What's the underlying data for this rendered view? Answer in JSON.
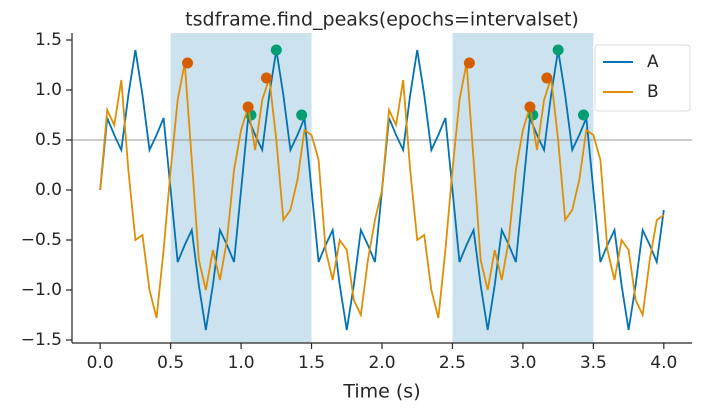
{
  "chart_data": {
    "type": "line",
    "title": "tsdframe.find_peaks(epochs=intervalset)",
    "xlabel": "Time (s)",
    "x": [
      0,
      0.05,
      0.1,
      0.15,
      0.2,
      0.25,
      0.3,
      0.35,
      0.4,
      0.45,
      0.5,
      0.55,
      0.6,
      0.65,
      0.7,
      0.75,
      0.8,
      0.85,
      0.9,
      0.95,
      1,
      1.05,
      1.1,
      1.15,
      1.2,
      1.25,
      1.3,
      1.35,
      1.4,
      1.45,
      1.5,
      1.55,
      1.6,
      1.65,
      1.7,
      1.75,
      1.8,
      1.85,
      1.9,
      1.95,
      2,
      2.05,
      2.1,
      2.15,
      2.2,
      2.25,
      2.3,
      2.35,
      2.4,
      2.45,
      2.5,
      2.55,
      2.6,
      2.65,
      2.7,
      2.75,
      2.8,
      2.85,
      2.9,
      2.95,
      3,
      3.05,
      3.1,
      3.15,
      3.2,
      3.25,
      3.3,
      3.35,
      3.4,
      3.45,
      3.5,
      3.55,
      3.6,
      3.65,
      3.7,
      3.75,
      3.8,
      3.85,
      3.9,
      3.95,
      4
    ],
    "series": [
      {
        "name": "A",
        "color": "#0173b2",
        "values": [
          0,
          0.72,
          0.55,
          0.4,
          0.95,
          1.4,
          0.95,
          0.4,
          0.55,
          0.72,
          0,
          -0.72,
          -0.55,
          -0.4,
          -0.95,
          -1.4,
          -0.95,
          -0.4,
          -0.55,
          -0.72,
          0,
          0.72,
          0.55,
          0.4,
          0.95,
          1.4,
          0.95,
          0.4,
          0.55,
          0.72,
          0,
          -0.72,
          -0.55,
          -0.4,
          -0.95,
          -1.4,
          -0.95,
          -0.4,
          -0.55,
          -0.72,
          0,
          0.72,
          0.55,
          0.4,
          0.95,
          1.4,
          0.95,
          0.4,
          0.55,
          0.72,
          0,
          -0.72,
          -0.55,
          -0.4,
          -0.95,
          -1.4,
          -0.95,
          -0.4,
          -0.55,
          -0.72,
          0,
          0.72,
          0.55,
          0.4,
          0.95,
          1.4,
          0.95,
          0.4,
          0.55,
          0.72,
          0,
          -0.72,
          -0.55,
          -0.4,
          -0.95,
          -1.4,
          -0.95,
          -0.4,
          -0.55,
          -0.72,
          -0.2
        ],
        "peaks": {
          "color": "#029e73",
          "x": [
            1.07,
            1.25,
            1.43,
            3.07,
            3.25,
            3.43
          ],
          "y": [
            0.75,
            1.4,
            0.75,
            0.75,
            1.4,
            0.75
          ]
        }
      },
      {
        "name": "B",
        "color": "#de8f05",
        "values": [
          0,
          0.8,
          0.65,
          1.1,
          0.2,
          -0.5,
          -0.45,
          -1.0,
          -1.28,
          -0.6,
          0.2,
          0.9,
          1.27,
          0.3,
          -0.7,
          -1.0,
          -0.6,
          -0.9,
          -0.5,
          0.2,
          0.6,
          0.83,
          0.4,
          0.9,
          1.12,
          0.5,
          -0.3,
          -0.2,
          0.1,
          0.6,
          0.55,
          0.3,
          -0.6,
          -0.9,
          -0.5,
          -0.6,
          -1.1,
          -1.25,
          -0.7,
          -0.3,
          0,
          0.8,
          0.65,
          1.1,
          0.2,
          -0.5,
          -0.45,
          -1.0,
          -1.28,
          -0.6,
          0.2,
          0.9,
          1.27,
          0.3,
          -0.7,
          -1.0,
          -0.6,
          -0.9,
          -0.5,
          0.2,
          0.6,
          0.83,
          0.4,
          0.9,
          1.12,
          0.5,
          -0.3,
          -0.2,
          0.1,
          0.6,
          0.55,
          0.3,
          -0.6,
          -0.9,
          -0.5,
          -0.6,
          -1.1,
          -1.25,
          -0.7,
          -0.3,
          -0.25
        ],
        "peaks": {
          "color": "#d55e00",
          "x": [
            0.62,
            1.05,
            1.18,
            2.62,
            3.05,
            3.17
          ],
          "y": [
            1.27,
            0.83,
            1.12,
            1.27,
            0.83,
            1.12
          ]
        }
      }
    ],
    "intervals": [
      [
        0.5,
        1.5
      ],
      [
        2.5,
        3.5
      ]
    ],
    "interval_color": "#cde2ef",
    "threshold": 0.5,
    "xlim": [
      -0.2,
      4.2
    ],
    "ylim": [
      -1.53,
      1.57
    ],
    "xticks": [
      {
        "value": 0,
        "label": "0.0"
      },
      0.5,
      {
        "value": 1,
        "label": "1.0"
      },
      1.5,
      {
        "value": 2,
        "label": "2.0"
      },
      2.5,
      {
        "value": 3,
        "label": "3.0"
      },
      3.5,
      {
        "value": 4,
        "label": "4.0"
      }
    ],
    "yticks": [
      {
        "value": -1.5,
        "label": "−1.5"
      },
      {
        "value": -1,
        "label": "−1.0"
      },
      {
        "value": -0.5,
        "label": "−0.5"
      },
      {
        "value": 0,
        "label": "0.0"
      },
      0.5,
      {
        "value": 1,
        "label": "1.0"
      },
      1.5
    ],
    "legend": "upper right"
  }
}
